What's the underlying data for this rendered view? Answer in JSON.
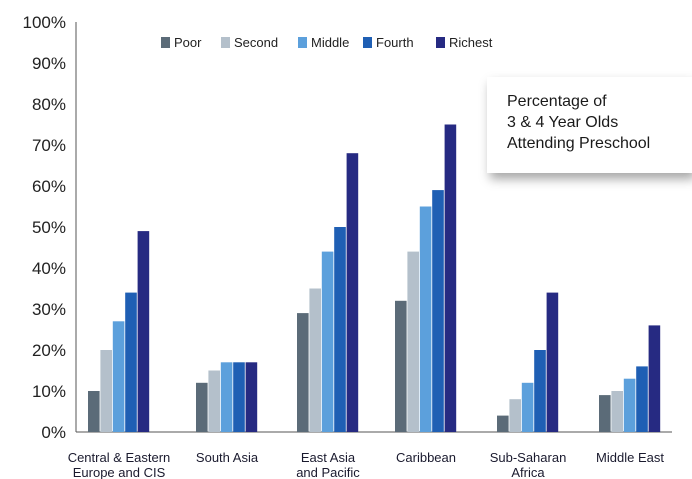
{
  "chart_data": {
    "type": "bar",
    "title_lines": [
      "Percentage of",
      "3 & 4 Year Olds",
      "Attending Preschool"
    ],
    "categories": [
      [
        "Central & Eastern",
        "Europe and CIS"
      ],
      [
        "South Asia"
      ],
      [
        "East Asia",
        "and Pacific"
      ],
      [
        "Caribbean"
      ],
      [
        "Sub-Saharan",
        "Africa"
      ],
      [
        "Middle East"
      ]
    ],
    "series": [
      {
        "name": "Poor",
        "color": "#5b6b78",
        "values": [
          10,
          12,
          29,
          32,
          4,
          9
        ]
      },
      {
        "name": "Second",
        "color": "#b4c0cb",
        "values": [
          20,
          15,
          35,
          44,
          8,
          10
        ]
      },
      {
        "name": "Middle",
        "color": "#5ca0dc",
        "values": [
          27,
          17,
          44,
          55,
          12,
          13
        ]
      },
      {
        "name": "Fourth",
        "color": "#1f5fb4",
        "values": [
          34,
          17,
          50,
          59,
          20,
          16
        ]
      },
      {
        "name": "Richest",
        "color": "#262a82",
        "values": [
          49,
          17,
          68,
          75,
          34,
          26
        ]
      }
    ],
    "ylim": [
      0,
      100
    ],
    "yticks": [
      "0%",
      "10%",
      "20%",
      "30%",
      "40%",
      "50%",
      "60%",
      "70%",
      "80%",
      "90%",
      "100%"
    ],
    "grid": false,
    "legend_position": "top"
  }
}
